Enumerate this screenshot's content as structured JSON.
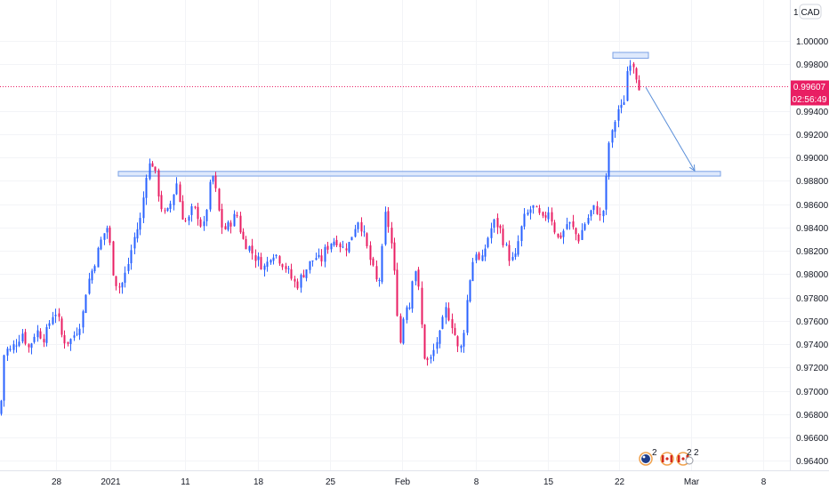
{
  "colors": {
    "up": "#2962ff",
    "down": "#e91e63",
    "zone_fill": "#d6e4fb",
    "zone_stroke": "#7ba2e6",
    "arrow": "#5b8fd9",
    "price_tag": "#e91e63"
  },
  "toolbar": {
    "scale_label": "1",
    "currency_label": "CAD"
  },
  "price_tag": {
    "price": "0.99607",
    "countdown": "02:56:49"
  },
  "events": {
    "count_a": "2",
    "count_b": "2",
    "count_c": "2"
  },
  "chart_data": {
    "type": "candlestick",
    "x_ticks": [
      "28",
      "2021",
      "11",
      "18",
      "25",
      "Feb",
      "8",
      "15",
      "22",
      "Mar",
      "8"
    ],
    "y_ticks": [
      "1.00000",
      "0.99800",
      "0.99400",
      "0.99200",
      "0.99000",
      "0.98800",
      "0.98600",
      "0.98400",
      "0.98200",
      "0.98000",
      "0.97800",
      "0.97600",
      "0.97400",
      "0.97200",
      "0.97000",
      "0.96800",
      "0.96600",
      "0.96400"
    ],
    "ylim": [
      0.9628,
      1.0025
    ],
    "last_price": 0.99607,
    "support_zone": {
      "low": 0.9884,
      "high": 0.9888
    },
    "top_zone": {
      "low": 0.9985,
      "high": 0.999
    },
    "forecast_arrow": {
      "from": 0.996,
      "to": 0.9887
    },
    "close_path": [
      [
        0,
        0.968
      ],
      [
        5,
        0.9738
      ],
      [
        10,
        0.9733
      ],
      [
        18,
        0.9742
      ],
      [
        25,
        0.975
      ],
      [
        32,
        0.9736
      ],
      [
        40,
        0.9752
      ],
      [
        50,
        0.9745
      ],
      [
        58,
        0.9765
      ],
      [
        63,
        0.9768
      ],
      [
        70,
        0.9744
      ],
      [
        78,
        0.9742
      ],
      [
        85,
        0.9751
      ],
      [
        92,
        0.9762
      ],
      [
        97,
        0.979
      ],
      [
        103,
        0.9803
      ],
      [
        110,
        0.982
      ],
      [
        115,
        0.9833
      ],
      [
        120,
        0.984
      ],
      [
        124,
        0.9822
      ],
      [
        128,
        0.9795
      ],
      [
        135,
        0.9788
      ],
      [
        142,
        0.9803
      ],
      [
        150,
        0.983
      ],
      [
        158,
        0.9848
      ],
      [
        165,
        0.9892
      ],
      [
        171,
        0.9895
      ],
      [
        175,
        0.9882
      ],
      [
        180,
        0.986
      ],
      [
        186,
        0.9848
      ],
      [
        192,
        0.9862
      ],
      [
        198,
        0.9879
      ],
      [
        204,
        0.9852
      ],
      [
        210,
        0.9843
      ],
      [
        216,
        0.9856
      ],
      [
        222,
        0.9851
      ],
      [
        228,
        0.9837
      ],
      [
        234,
        0.9866
      ],
      [
        238,
        0.9887
      ],
      [
        243,
        0.9868
      ],
      [
        248,
        0.9842
      ],
      [
        254,
        0.9838
      ],
      [
        260,
        0.9846
      ],
      [
        266,
        0.9851
      ],
      [
        272,
        0.983
      ],
      [
        278,
        0.9825
      ],
      [
        285,
        0.9816
      ],
      [
        292,
        0.981
      ],
      [
        298,
        0.9805
      ],
      [
        305,
        0.982
      ],
      [
        312,
        0.9815
      ],
      [
        320,
        0.9807
      ],
      [
        326,
        0.9798
      ],
      [
        333,
        0.979
      ],
      [
        340,
        0.98
      ],
      [
        347,
        0.9808
      ],
      [
        354,
        0.9815
      ],
      [
        360,
        0.981
      ],
      [
        366,
        0.9822
      ],
      [
        372,
        0.9828
      ],
      [
        378,
        0.983
      ],
      [
        385,
        0.9822
      ],
      [
        392,
        0.9826
      ],
      [
        398,
        0.984
      ],
      [
        403,
        0.9848
      ],
      [
        408,
        0.9835
      ],
      [
        413,
        0.982
      ],
      [
        418,
        0.9806
      ],
      [
        424,
        0.979
      ],
      [
        428,
        0.9802
      ],
      [
        432,
        0.9852
      ],
      [
        437,
        0.984
      ],
      [
        441,
        0.9818
      ],
      [
        446,
        0.9772
      ],
      [
        450,
        0.974
      ],
      [
        455,
        0.9776
      ],
      [
        460,
        0.9773
      ],
      [
        465,
        0.981
      ],
      [
        469,
        0.9797
      ],
      [
        473,
        0.976
      ],
      [
        477,
        0.973
      ],
      [
        481,
        0.9724
      ],
      [
        485,
        0.9728
      ],
      [
        490,
        0.9742
      ],
      [
        495,
        0.9748
      ],
      [
        500,
        0.977
      ],
      [
        506,
        0.9762
      ],
      [
        511,
        0.9748
      ],
      [
        516,
        0.973
      ],
      [
        520,
        0.9745
      ],
      [
        525,
        0.978
      ],
      [
        530,
        0.9808
      ],
      [
        535,
        0.982
      ],
      [
        540,
        0.9806
      ],
      [
        546,
        0.9826
      ],
      [
        551,
        0.9838
      ],
      [
        556,
        0.9845
      ],
      [
        561,
        0.984
      ],
      [
        566,
        0.9828
      ],
      [
        572,
        0.9815
      ],
      [
        578,
        0.981
      ],
      [
        583,
        0.983
      ],
      [
        588,
        0.9846
      ],
      [
        593,
        0.9852
      ],
      [
        598,
        0.9858
      ],
      [
        604,
        0.9852
      ],
      [
        610,
        0.9845
      ],
      [
        616,
        0.9856
      ],
      [
        621,
        0.9845
      ],
      [
        626,
        0.983
      ],
      [
        632,
        0.9835
      ],
      [
        638,
        0.9845
      ],
      [
        644,
        0.9838
      ],
      [
        650,
        0.983
      ],
      [
        656,
        0.9842
      ],
      [
        661,
        0.9849
      ],
      [
        666,
        0.9856
      ],
      [
        671,
        0.9855
      ],
      [
        676,
        0.9845
      ],
      [
        680,
        0.987
      ],
      [
        684,
        0.9912
      ],
      [
        688,
        0.992
      ],
      [
        692,
        0.9935
      ],
      [
        696,
        0.9945
      ],
      [
        700,
        0.9938
      ],
      [
        704,
        0.9972
      ],
      [
        708,
        0.9984
      ],
      [
        712,
        0.998
      ],
      [
        716,
        0.9968
      ],
      [
        719,
        0.9961
      ]
    ]
  }
}
